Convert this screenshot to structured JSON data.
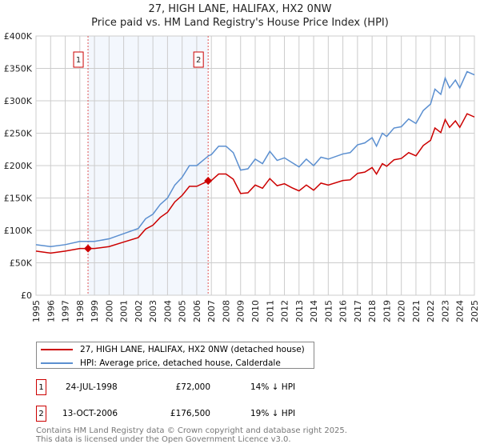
{
  "chart_data": {
    "type": "line",
    "title": "27, HIGH LANE, HALIFAX, HX2 0NW",
    "subtitle": "Price paid vs. HM Land Registry's House Price Index (HPI)",
    "xlim": [
      1995,
      2025
    ],
    "ylim": [
      0,
      400000
    ],
    "x_ticks": [
      "1995",
      "1996",
      "1997",
      "1998",
      "1999",
      "2000",
      "2001",
      "2002",
      "2003",
      "2004",
      "2005",
      "2006",
      "2007",
      "2008",
      "2009",
      "2010",
      "2011",
      "2012",
      "2013",
      "2014",
      "2015",
      "2016",
      "2017",
      "2018",
      "2019",
      "2020",
      "2021",
      "2022",
      "2023",
      "2024",
      "2025"
    ],
    "y_ticks": [
      {
        "v": 0,
        "l": "£0"
      },
      {
        "v": 50000,
        "l": "£50K"
      },
      {
        "v": 100000,
        "l": "£100K"
      },
      {
        "v": 150000,
        "l": "£150K"
      },
      {
        "v": 200000,
        "l": "£200K"
      },
      {
        "v": 250000,
        "l": "£250K"
      },
      {
        "v": 300000,
        "l": "£300K"
      },
      {
        "v": 350000,
        "l": "£350K"
      },
      {
        "v": 400000,
        "l": "£400K"
      }
    ],
    "grid": true,
    "x": [
      1995,
      1996,
      1997,
      1998,
      1999,
      2000,
      2001,
      2002,
      2002.5,
      2003,
      2003.5,
      2004,
      2004.5,
      2005,
      2005.5,
      2006,
      2006.8,
      2007,
      2007.5,
      2008,
      2008.5,
      2009,
      2009.5,
      2010,
      2010.5,
      2011,
      2011.5,
      2012,
      2012.5,
      2013,
      2013.5,
      2014,
      2014.5,
      2015,
      2016,
      2016.5,
      2017,
      2017.5,
      2018,
      2018.3,
      2018.7,
      2019,
      2019.5,
      2020,
      2020.5,
      2021,
      2021.5,
      2022,
      2022.3,
      2022.7,
      2023,
      2023.3,
      2023.7,
      2024,
      2024.5,
      2025
    ],
    "series": [
      {
        "name": "27, HIGH LANE, HALIFAX, HX2 0NW (detached house)",
        "color": "#cc0000",
        "values": [
          68,
          65,
          68,
          72,
          72,
          75,
          82,
          89,
          102,
          108,
          120,
          128,
          144,
          154,
          168,
          168,
          176.5,
          177,
          187,
          187,
          179,
          157,
          158,
          170,
          165,
          180,
          169,
          172,
          166,
          161,
          170,
          162,
          173,
          170,
          177,
          178,
          188,
          190,
          197,
          187,
          203,
          199,
          209,
          211,
          220,
          215,
          231,
          239,
          258,
          251,
          271,
          259,
          269,
          259,
          280,
          275
        ]
      },
      {
        "name": "HPI: Average price, detached house, Calderdale",
        "color": "#5b8fd0",
        "values": [
          78,
          75,
          78,
          83,
          83,
          87,
          95,
          103,
          118,
          125,
          140,
          150,
          170,
          182,
          200,
          200,
          215,
          217,
          230,
          230,
          220,
          193,
          195,
          210,
          203,
          222,
          208,
          212,
          205,
          198,
          210,
          200,
          213,
          210,
          218,
          220,
          232,
          235,
          243,
          230,
          250,
          245,
          258,
          260,
          272,
          265,
          285,
          295,
          318,
          310,
          335,
          320,
          332,
          320,
          345,
          340
        ]
      }
    ],
    "value_unit": "thousands GBP",
    "sales": [
      {
        "num": "1",
        "year": 1998.56,
        "date": "24-JUL-1998",
        "price": "£72,000",
        "price_value": 72000,
        "hpi": "14% ↓ HPI"
      },
      {
        "num": "2",
        "year": 2006.78,
        "date": "13-OCT-2006",
        "price": "£176,500",
        "price_value": 176500,
        "hpi": "19% ↓ HPI"
      }
    ],
    "legend_placement": "below"
  },
  "footer": {
    "line1": "Contains HM Land Registry data © Crown copyright and database right 2025.",
    "line2": "This data is licensed under the Open Government Licence v3.0."
  }
}
